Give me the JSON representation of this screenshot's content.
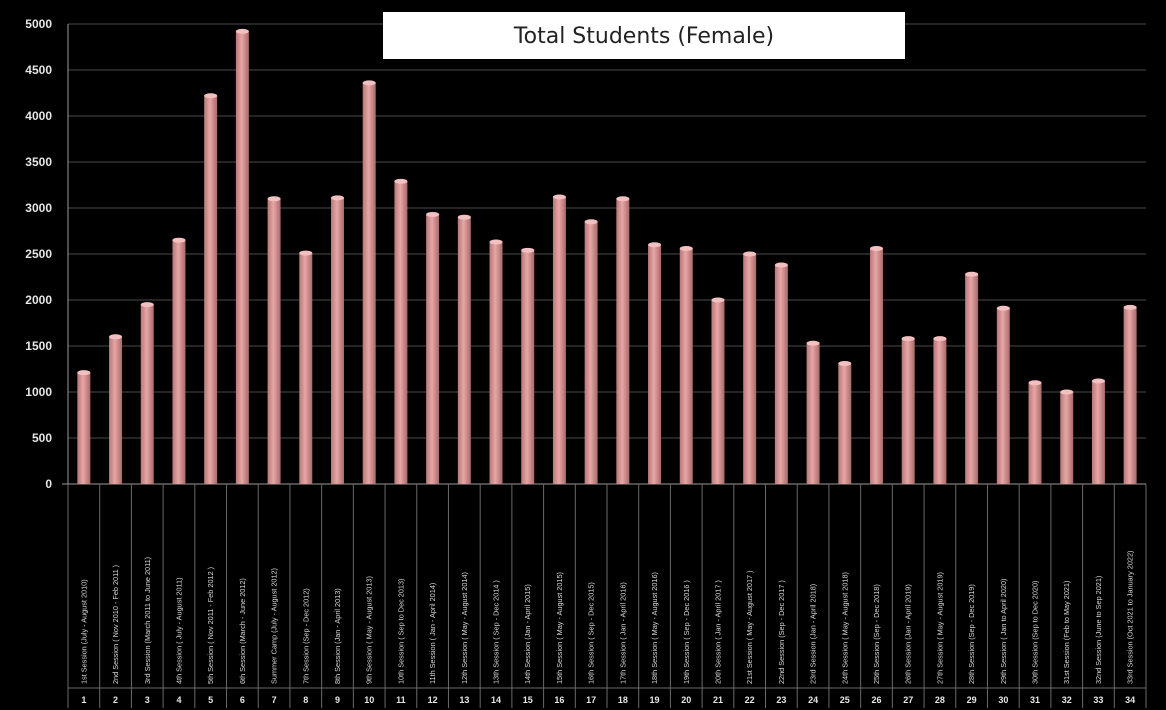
{
  "chart_data": {
    "type": "bar",
    "title": "Total Students (Female)",
    "xlabel": "",
    "ylabel": "",
    "ylim": [
      0,
      5000
    ],
    "yticks": [
      0,
      500,
      1000,
      1500,
      2000,
      2500,
      3000,
      3500,
      4000,
      4500,
      5000
    ],
    "grid": true,
    "legend": "none",
    "bar_color": "#e8a6a6",
    "background": "#000000",
    "categories": [
      "1st Session (July - August 2010)",
      "2nd Session ( Nov 2010 - Feb 2011 )",
      "3rd Session (March 2011 to June 2011)",
      "4th Session ( July - August 2011)",
      "5th Session ( Nov 2011 - Feb 2012 )",
      "6th Session (March - June 2012)",
      "Summer Camp (July - August 2012)",
      "7th Session (Sep - Dec 2012)",
      "8th Session (Jan - April 2013)",
      "9th Session ( May - August 2013)",
      "10th Session ( Sep to Dec 2013)",
      "11th Session ( Jan - April 2014)",
      "12th Session ( May - August 2014)",
      "13th Session ( Sep - Dec 2014 )",
      "14th Session (Jan - April 2015)",
      "15th Session ( May - August 2015)",
      "16th Session ( Sep - Dec 2015)",
      "17th Session ( Jan - April 2016)",
      "18th Session ( May - August 2016)",
      "19th Session ( Sep - Dec 2016 )",
      "20th Session ( Jan - April 2017 )",
      "21st Session ( May - August 2017 )",
      "22nd Session (Sep - Dec 2017 )",
      "23rd Session (Jan - April 2018)",
      "24th Session ( May - August 2018)",
      "25th Session (Sep - Dec 2018)",
      "26th Session (Jan - April 2019)",
      "27th Session ( May - August 2019)",
      "28th Session (Sep - Dec 2019)",
      "29th Session ( Jan to April 2020)",
      "30th Session (Sep to Dec 2020)",
      "31st Session (Feb to May 2021)",
      "32nd Session (June to Sep 2021)",
      "33rd Session (Oct 2021 to January 2022)"
    ],
    "index_labels": [
      "1",
      "2",
      "3",
      "4",
      "5",
      "6",
      "7",
      "8",
      "9",
      "10",
      "11",
      "12",
      "13",
      "14",
      "15",
      "16",
      "17",
      "18",
      "19",
      "20",
      "21",
      "22",
      "23",
      "24",
      "25",
      "26",
      "27",
      "28",
      "29",
      "30",
      "31",
      "32",
      "33",
      "34"
    ],
    "values": [
      1210,
      1600,
      1950,
      2650,
      4220,
      4920,
      3100,
      2510,
      3110,
      4360,
      3290,
      2930,
      2900,
      2630,
      2540,
      3120,
      2850,
      3100,
      2600,
      2560,
      2000,
      2500,
      2380,
      1530,
      1310,
      2560,
      1580,
      1580,
      2280,
      1910,
      1100,
      1000,
      1120,
      1920
    ]
  }
}
